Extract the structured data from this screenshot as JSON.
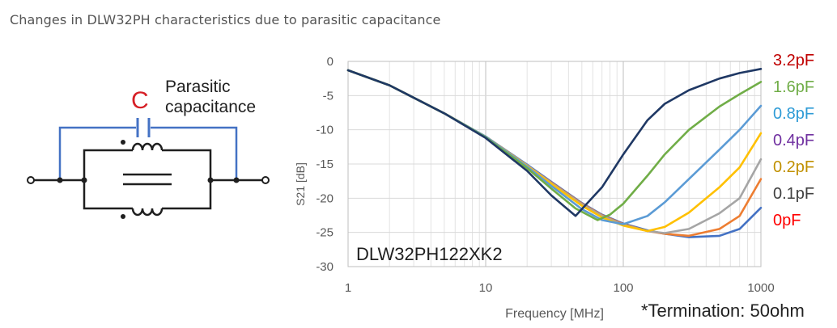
{
  "title": "Changes in DLW32PH characteristics due to parasitic capacitance",
  "schematic": {
    "symbol": "C",
    "label_line1": "Parasitic",
    "label_line2": "capacitance",
    "colors": {
      "wire": "#1f1f1f",
      "capacitor": "#4472c4",
      "symbol": "#d61f26"
    }
  },
  "note": "*Termination: 50ohm",
  "chart_data": {
    "type": "line",
    "title": "",
    "annotation": "DLW32PH122XK2",
    "xlabel": "Frequency [MHz]",
    "ylabel": "S21 [dB]",
    "xscale": "log",
    "xlim": [
      1,
      1000
    ],
    "ylim": [
      -30,
      0
    ],
    "xticks": [
      1,
      10,
      100,
      1000
    ],
    "yticks": [
      0,
      -5,
      -10,
      -15,
      -20,
      -25,
      -30
    ],
    "grid": true,
    "legend_position": "right",
    "series": [
      {
        "name": "3.2pF",
        "color": "#c00000",
        "line_color": "#1f3864",
        "x": [
          1,
          2,
          5,
          10,
          20,
          30,
          45,
          70,
          100,
          150,
          200,
          300,
          500,
          700,
          1000
        ],
        "values": [
          -1.3,
          -3.5,
          -7.6,
          -11.2,
          -16.0,
          -19.6,
          -22.6,
          -18.4,
          -13.6,
          -8.6,
          -6.2,
          -4.2,
          -2.5,
          -1.7,
          -1.1
        ]
      },
      {
        "name": "1.6pF",
        "color": "#70ad47",
        "line_color": "#70ad47",
        "x": [
          1,
          2,
          5,
          10,
          20,
          30,
          45,
          65,
          80,
          100,
          150,
          200,
          300,
          500,
          700,
          1000
        ],
        "values": [
          -1.3,
          -3.5,
          -7.6,
          -11.1,
          -15.6,
          -18.6,
          -21.5,
          -23.2,
          -22.4,
          -20.8,
          -16.7,
          -13.6,
          -10.0,
          -6.6,
          -4.8,
          -3.0
        ]
      },
      {
        "name": "0.8pF",
        "color": "#2e9bd6",
        "line_color": "#5b9bd5",
        "x": [
          1,
          2,
          5,
          10,
          20,
          30,
          50,
          70,
          100,
          150,
          200,
          300,
          500,
          700,
          1000
        ],
        "values": [
          -1.3,
          -3.5,
          -7.6,
          -11.0,
          -15.4,
          -18.2,
          -21.6,
          -23.2,
          -23.8,
          -22.6,
          -20.6,
          -17.2,
          -12.9,
          -10.0,
          -6.5
        ]
      },
      {
        "name": "0.4pF",
        "color": "#7030a0",
        "line_color": "#ffc000",
        "x": [
          1,
          2,
          5,
          10,
          20,
          30,
          50,
          70,
          100,
          150,
          200,
          300,
          500,
          700,
          1000
        ],
        "values": [
          -1.3,
          -3.5,
          -7.6,
          -11.0,
          -15.3,
          -17.9,
          -21.1,
          -22.8,
          -24.0,
          -24.8,
          -24.2,
          -22.1,
          -18.4,
          -15.5,
          -10.5
        ]
      },
      {
        "name": "0.2pF",
        "color": "#c09000",
        "line_color": "#a5a5a5",
        "x": [
          1,
          2,
          5,
          10,
          20,
          30,
          50,
          70,
          100,
          150,
          200,
          300,
          500,
          700,
          1000
        ],
        "values": [
          -1.3,
          -3.5,
          -7.6,
          -11.0,
          -15.2,
          -17.8,
          -20.9,
          -22.6,
          -23.9,
          -24.8,
          -25.1,
          -24.5,
          -22.2,
          -20.0,
          -14.3
        ]
      },
      {
        "name": "0.1pF",
        "color": "#404040",
        "line_color": "#ed7d31",
        "x": [
          1,
          2,
          5,
          10,
          20,
          30,
          50,
          70,
          100,
          150,
          200,
          300,
          500,
          700,
          1000
        ],
        "values": [
          -1.3,
          -3.5,
          -7.6,
          -11.0,
          -15.2,
          -17.7,
          -20.8,
          -22.5,
          -23.8,
          -24.8,
          -25.2,
          -25.5,
          -24.5,
          -22.6,
          -17.2
        ]
      },
      {
        "name": "0pF",
        "color": "#ff0000",
        "line_color": "#4472c4",
        "x": [
          1,
          2,
          5,
          10,
          20,
          30,
          50,
          70,
          100,
          150,
          200,
          300,
          500,
          700,
          1000
        ],
        "values": [
          -1.3,
          -3.5,
          -7.6,
          -11.0,
          -15.1,
          -17.6,
          -20.7,
          -22.4,
          -23.7,
          -24.7,
          -25.2,
          -25.7,
          -25.5,
          -24.5,
          -21.4
        ]
      }
    ]
  }
}
